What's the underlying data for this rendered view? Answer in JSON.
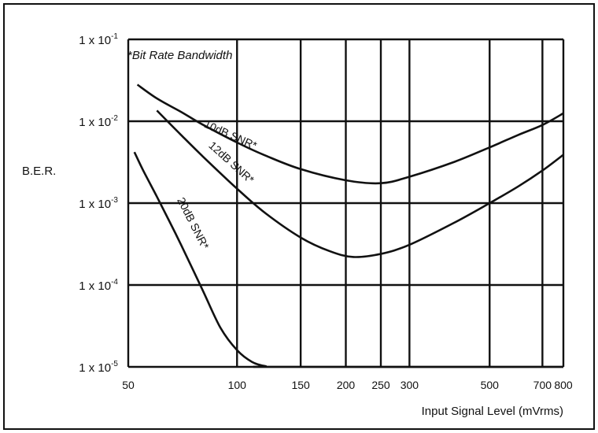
{
  "chart_data": {
    "type": "line",
    "title": "",
    "xlabel": "Input Signal Level (mVrms)",
    "ylabel": "B.E.R.",
    "x_scale": "log",
    "y_scale": "log",
    "xlim": [
      50,
      800
    ],
    "ylim": [
      1e-05,
      0.1
    ],
    "grid": true,
    "x_ticks": [
      50,
      100,
      150,
      200,
      250,
      300,
      500,
      700,
      800
    ],
    "x_tick_labels": [
      "50",
      "100",
      "150",
      "200",
      "250",
      "300",
      "500",
      "700",
      "800"
    ],
    "y_ticks": [
      {
        "value": 0.1,
        "mantissa": "1 x 10",
        "exp": "-1"
      },
      {
        "value": 0.01,
        "mantissa": "1 x 10",
        "exp": "-2"
      },
      {
        "value": 0.001,
        "mantissa": "1 x 10",
        "exp": "-3"
      },
      {
        "value": 0.0001,
        "mantissa": "1 x 10",
        "exp": "-4"
      },
      {
        "value": 1e-05,
        "mantissa": "1 x 10",
        "exp": "-5"
      }
    ],
    "annotation": "*Bit Rate Bandwidth",
    "series": [
      {
        "name": "10dB SNR*",
        "x": [
          53,
          60,
          70,
          80,
          100,
          120,
          150,
          200,
          250,
          300,
          400,
          500,
          600,
          700,
          800
        ],
        "y": [
          0.028,
          0.019,
          0.013,
          0.0092,
          0.0055,
          0.0038,
          0.0026,
          0.0019,
          0.00175,
          0.0021,
          0.0032,
          0.0048,
          0.0068,
          0.009,
          0.0125
        ]
      },
      {
        "name": "12dB SNR*",
        "x": [
          60,
          70,
          80,
          100,
          120,
          150,
          180,
          210,
          250,
          300,
          400,
          500,
          600,
          700,
          800
        ],
        "y": [
          0.0135,
          0.0068,
          0.0038,
          0.0015,
          0.00075,
          0.00038,
          0.00026,
          0.00022,
          0.00024,
          0.00031,
          0.00058,
          0.001,
          0.0016,
          0.0025,
          0.0039
        ]
      },
      {
        "name": "20dB SNR*",
        "x": [
          52,
          55,
          60,
          65,
          70,
          80,
          90,
          100,
          110,
          120,
          130,
          800
        ],
        "y": [
          0.0042,
          0.0025,
          0.0012,
          0.0006,
          0.00031,
          9e-05,
          3e-05,
          1.6e-05,
          1.15e-05,
          1.02e-05,
          1e-05,
          1e-05
        ]
      }
    ]
  }
}
